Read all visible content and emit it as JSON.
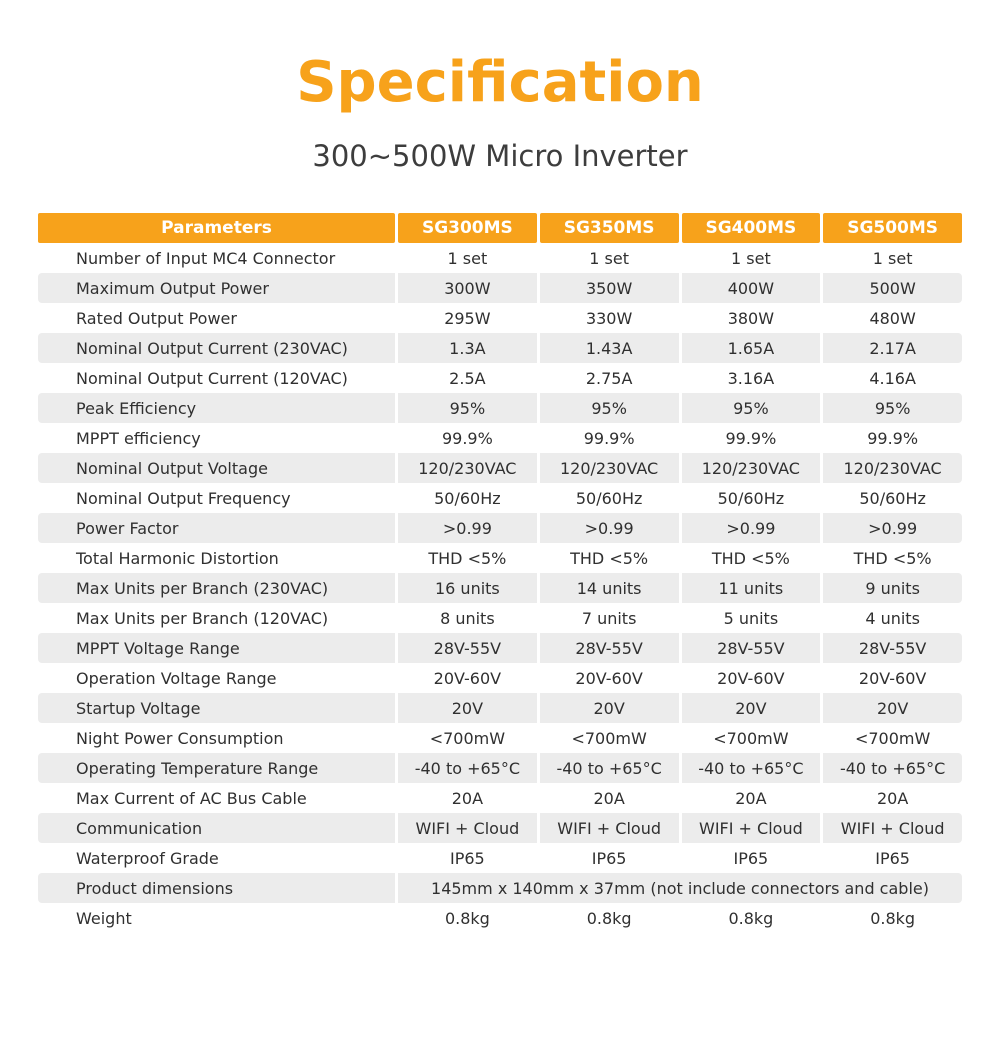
{
  "colors": {
    "accent_orange": "#F7A21B",
    "stripe_gray": "#ECECEC",
    "header_text": "#FFFFFF",
    "subtitle_text": "#3D3D3D"
  },
  "page": {
    "title": "Specification",
    "subtitle": "300~500W Micro Inverter"
  },
  "table": {
    "header": {
      "parameters_label": "Parameters",
      "columns": [
        "SG300MS",
        "SG350MS",
        "SG400MS",
        "SG500MS"
      ]
    },
    "rows": [
      {
        "label": "Number of Input MC4 Connector",
        "values": [
          "1 set",
          "1 set",
          "1 set",
          "1 set"
        ]
      },
      {
        "label": "Maximum Output Power",
        "values": [
          "300W",
          "350W",
          "400W",
          "500W"
        ]
      },
      {
        "label": "Rated Output Power",
        "values": [
          "295W",
          "330W",
          "380W",
          "480W"
        ]
      },
      {
        "label": "Nominal Output Current (230VAC)",
        "values": [
          "1.3A",
          "1.43A",
          "1.65A",
          "2.17A"
        ]
      },
      {
        "label": "Nominal Output Current (120VAC)",
        "values": [
          "2.5A",
          "2.75A",
          "3.16A",
          "4.16A"
        ]
      },
      {
        "label": "Peak Efficiency",
        "values": [
          "95%",
          "95%",
          "95%",
          "95%"
        ]
      },
      {
        "label": "MPPT efficiency",
        "values": [
          "99.9%",
          "99.9%",
          "99.9%",
          "99.9%"
        ]
      },
      {
        "label": "Nominal Output Voltage",
        "values": [
          "120/230VAC",
          "120/230VAC",
          "120/230VAC",
          "120/230VAC"
        ]
      },
      {
        "label": "Nominal Output Frequency",
        "values": [
          "50/60Hz",
          "50/60Hz",
          "50/60Hz",
          "50/60Hz"
        ]
      },
      {
        "label": "Power Factor",
        "values": [
          ">0.99",
          ">0.99",
          ">0.99",
          ">0.99"
        ]
      },
      {
        "label": "Total Harmonic Distortion",
        "values": [
          "THD <5%",
          "THD <5%",
          "THD <5%",
          "THD <5%"
        ]
      },
      {
        "label": "Max Units per Branch (230VAC)",
        "values": [
          "16 units",
          "14 units",
          "11 units",
          "9 units"
        ]
      },
      {
        "label": "Max Units per Branch (120VAC)",
        "values": [
          "8 units",
          "7 units",
          "5 units",
          "4 units"
        ]
      },
      {
        "label": "MPPT Voltage Range",
        "values": [
          "28V-55V",
          "28V-55V",
          "28V-55V",
          "28V-55V"
        ]
      },
      {
        "label": "Operation Voltage Range",
        "values": [
          "20V-60V",
          "20V-60V",
          "20V-60V",
          "20V-60V"
        ]
      },
      {
        "label": "Startup Voltage",
        "values": [
          "20V",
          "20V",
          "20V",
          "20V"
        ]
      },
      {
        "label": "Night Power Consumption",
        "values": [
          "<700mW",
          "<700mW",
          "<700mW",
          "<700mW"
        ]
      },
      {
        "label": "Operating Temperature Range",
        "values": [
          "-40 to +65°C",
          "-40 to +65°C",
          "-40 to +65°C",
          "-40 to +65°C"
        ]
      },
      {
        "label": "Max Current of AC Bus Cable",
        "values": [
          "20A",
          "20A",
          "20A",
          "20A"
        ]
      },
      {
        "label": "Communication",
        "values": [
          "WIFI + Cloud",
          "WIFI + Cloud",
          "WIFI + Cloud",
          "WIFI + Cloud"
        ]
      },
      {
        "label": "Waterproof Grade",
        "values": [
          "IP65",
          "IP65",
          "IP65",
          "IP65"
        ]
      },
      {
        "label": "Product dimensions",
        "values": [
          "145mm x 140mm x 37mm (not include connectors and cable)"
        ]
      },
      {
        "label": "Weight",
        "values": [
          "0.8kg",
          "0.8kg",
          "0.8kg",
          "0.8kg"
        ]
      }
    ]
  }
}
